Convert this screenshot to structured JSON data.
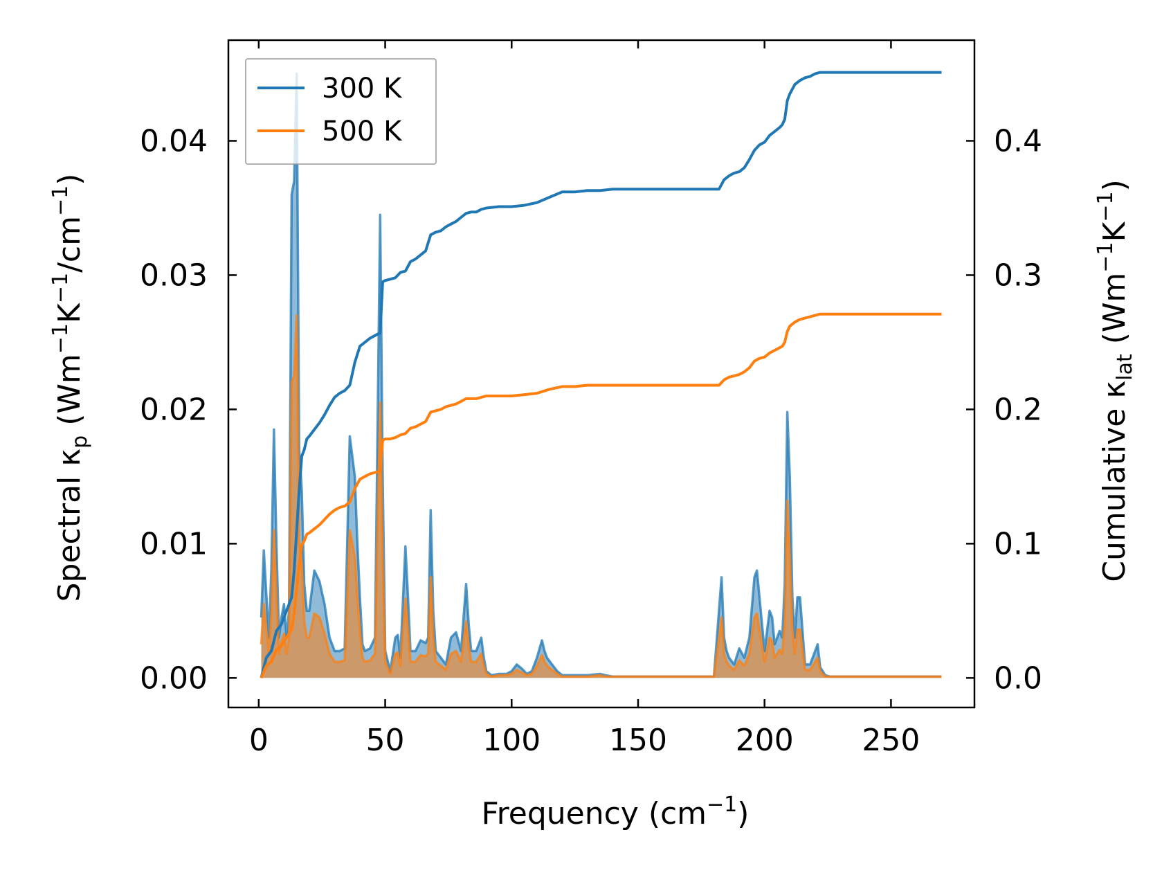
{
  "chart_data": {
    "type": "line",
    "xlabel": "Frequency (cm⁻¹)",
    "xlabel_parts": {
      "main": "Frequency (cm",
      "sup": "−1",
      "close": ")"
    },
    "ylabel_left_parts": {
      "a": "Spectral κ",
      "sub": "p",
      "b": " (Wm",
      "sup1": "−1",
      "c": "K",
      "sup2": "−1",
      "d": "/cm",
      "sup3": "−1",
      "e": ")"
    },
    "ylabel_right_parts": {
      "a": "Cumulative κ",
      "sub": "lat",
      "b": " (Wm",
      "sup1": "−1",
      "c": "K",
      "sup2": "−1",
      "d": ")"
    },
    "xlim": [
      -12,
      283
    ],
    "ylim_left": [
      -0.0022,
      0.0475
    ],
    "ylim_right": [
      -0.022,
      0.475
    ],
    "x_ticks": [
      0,
      50,
      100,
      150,
      200,
      250
    ],
    "y_left_ticks": [
      "0.00",
      "0.01",
      "0.02",
      "0.03",
      "0.04"
    ],
    "y_right_ticks": [
      "0.0",
      "0.1",
      "0.2",
      "0.3",
      "0.4"
    ],
    "legend": {
      "position": "top-left",
      "entries": [
        "300 K",
        "500 K"
      ]
    },
    "colors": {
      "300 K": "#1f77b4",
      "500 K": "#ff7f0e"
    },
    "series": [
      {
        "name": "300 K",
        "axis": "left",
        "kind": "spectral-filled",
        "x": [
          1,
          2,
          3,
          4,
          5,
          6,
          7,
          8,
          9,
          10,
          11,
          12,
          13,
          14,
          15,
          16,
          17,
          18,
          19,
          20,
          22,
          24,
          26,
          28,
          30,
          32,
          34,
          36,
          38,
          39,
          40,
          41,
          42,
          44,
          46,
          48,
          49,
          50,
          52,
          54,
          55,
          56,
          58,
          59,
          60,
          62,
          64,
          66,
          67,
          68,
          69,
          70,
          72,
          74,
          76,
          78,
          80,
          82,
          83,
          84,
          86,
          88,
          89,
          90,
          92,
          95,
          98,
          100,
          102,
          104,
          106,
          108,
          110,
          112,
          113,
          114,
          116,
          118,
          120,
          125,
          130,
          135,
          137,
          140,
          145,
          150,
          160,
          170,
          180,
          182,
          183,
          184,
          185,
          186,
          188,
          190,
          192,
          194,
          196,
          197,
          198,
          200,
          202,
          203,
          204,
          206,
          207,
          208,
          209,
          210,
          211,
          212,
          213,
          214,
          216,
          218,
          220,
          221,
          222,
          224,
          226,
          230,
          240,
          250,
          260,
          270
        ],
        "values": [
          0.0045,
          0.0095,
          0.0062,
          0.003,
          0.008,
          0.0185,
          0.01,
          0.003,
          0.0045,
          0.0055,
          0.003,
          0.005,
          0.036,
          0.037,
          0.045,
          0.017,
          0.014,
          0.007,
          0.005,
          0.005,
          0.008,
          0.0072,
          0.0055,
          0.003,
          0.002,
          0.002,
          0.0022,
          0.018,
          0.015,
          0.01,
          0.006,
          0.0025,
          0.002,
          0.0022,
          0.003,
          0.0345,
          0.015,
          0.002,
          0.0005,
          0.003,
          0.0032,
          0.0015,
          0.0098,
          0.006,
          0.002,
          0.002,
          0.0028,
          0.0026,
          0.003,
          0.0125,
          0.005,
          0.002,
          0.0015,
          0.001,
          0.003,
          0.0034,
          0.002,
          0.007,
          0.004,
          0.002,
          0.002,
          0.003,
          0.0015,
          0.0005,
          0.0002,
          0.0003,
          0.0003,
          0.0005,
          0.001,
          0.0007,
          0.0003,
          0.0005,
          0.0015,
          0.0028,
          0.002,
          0.0015,
          0.001,
          0.0005,
          0.0002,
          0.0002,
          0.0002,
          0.0003,
          0.0002,
          0.0001,
          0.0001,
          0.0001,
          0.0001,
          0.0001,
          0.0001,
          0.005,
          0.0075,
          0.003,
          0.002,
          0.0015,
          0.001,
          0.0022,
          0.0015,
          0.003,
          0.0075,
          0.008,
          0.006,
          0.002,
          0.005,
          0.0045,
          0.0025,
          0.0035,
          0.003,
          0.007,
          0.0198,
          0.015,
          0.006,
          0.003,
          0.006,
          0.006,
          0.001,
          0.001,
          0.002,
          0.0025,
          0.0008,
          0.0002,
          0.0001,
          0.0001,
          0.0001,
          0.0001,
          0.0001,
          0.0001
        ]
      },
      {
        "name": "500 K",
        "axis": "left",
        "kind": "spectral-filled",
        "x": [
          1,
          2,
          3,
          4,
          5,
          6,
          7,
          8,
          9,
          10,
          11,
          12,
          13,
          14,
          15,
          16,
          17,
          18,
          19,
          20,
          22,
          24,
          26,
          28,
          30,
          32,
          34,
          36,
          38,
          39,
          40,
          41,
          42,
          44,
          46,
          48,
          49,
          50,
          52,
          54,
          55,
          56,
          58,
          59,
          60,
          62,
          64,
          66,
          67,
          68,
          69,
          70,
          72,
          74,
          76,
          78,
          80,
          82,
          83,
          84,
          86,
          88,
          89,
          90,
          92,
          95,
          98,
          100,
          102,
          104,
          106,
          108,
          110,
          112,
          113,
          114,
          116,
          118,
          120,
          125,
          130,
          135,
          137,
          140,
          145,
          150,
          160,
          170,
          180,
          182,
          183,
          184,
          185,
          186,
          188,
          190,
          192,
          194,
          196,
          197,
          198,
          200,
          202,
          203,
          204,
          206,
          207,
          208,
          209,
          210,
          211,
          212,
          213,
          214,
          216,
          218,
          220,
          221,
          222,
          224,
          226,
          230,
          240,
          250,
          260,
          270
        ],
        "values": [
          0.0025,
          0.0055,
          0.0036,
          0.0018,
          0.0048,
          0.011,
          0.006,
          0.0018,
          0.0027,
          0.0033,
          0.0018,
          0.003,
          0.022,
          0.0225,
          0.027,
          0.0102,
          0.0085,
          0.0042,
          0.003,
          0.003,
          0.0048,
          0.0045,
          0.0033,
          0.0018,
          0.0012,
          0.0012,
          0.0013,
          0.011,
          0.009,
          0.006,
          0.0036,
          0.0015,
          0.0012,
          0.0013,
          0.0018,
          0.0205,
          0.009,
          0.0012,
          0.0003,
          0.0018,
          0.0019,
          0.0009,
          0.0059,
          0.0036,
          0.0012,
          0.0012,
          0.0017,
          0.0016,
          0.0018,
          0.0075,
          0.003,
          0.0012,
          0.0009,
          0.0006,
          0.0018,
          0.002,
          0.0012,
          0.0042,
          0.0024,
          0.0012,
          0.0012,
          0.0018,
          0.0009,
          0.0003,
          0.0001,
          0.0002,
          0.0002,
          0.0003,
          0.0006,
          0.0004,
          0.0002,
          0.0003,
          0.0009,
          0.0017,
          0.0012,
          0.0009,
          0.0006,
          0.0003,
          0.0001,
          0.0001,
          0.0001,
          0.0002,
          0.0001,
          0.0001,
          0.0001,
          0.0001,
          0.0001,
          0.0001,
          0.0001,
          0.003,
          0.0045,
          0.0018,
          0.0012,
          0.0009,
          0.0006,
          0.0013,
          0.0009,
          0.0018,
          0.0045,
          0.0048,
          0.0036,
          0.0012,
          0.003,
          0.0027,
          0.0015,
          0.0021,
          0.0018,
          0.0042,
          0.0132,
          0.009,
          0.0036,
          0.0018,
          0.0036,
          0.0036,
          0.0006,
          0.0006,
          0.0012,
          0.0015,
          0.0005,
          0.0001,
          0.0001,
          0.0001,
          0.0001,
          0.0001,
          0.0001,
          0.0001
        ]
      },
      {
        "name": "300 K",
        "axis": "right",
        "kind": "cumulative",
        "x": [
          1,
          3,
          5,
          7,
          9,
          11,
          13,
          14,
          15,
          16,
          17,
          18,
          19,
          20,
          22,
          24,
          26,
          28,
          30,
          32,
          34,
          36,
          38,
          40,
          42,
          44,
          46,
          48,
          49,
          50,
          52,
          54,
          56,
          58,
          60,
          62,
          64,
          66,
          68,
          70,
          72,
          74,
          76,
          78,
          80,
          82,
          84,
          86,
          88,
          90,
          95,
          100,
          105,
          110,
          115,
          120,
          125,
          130,
          135,
          140,
          150,
          160,
          170,
          182,
          184,
          186,
          188,
          190,
          192,
          194,
          196,
          198,
          200,
          202,
          204,
          206,
          207,
          208,
          209,
          210,
          212,
          214,
          216,
          218,
          220,
          222,
          230,
          240,
          250,
          260,
          270
        ],
        "values": [
          0.0,
          0.015,
          0.02,
          0.035,
          0.04,
          0.05,
          0.06,
          0.08,
          0.11,
          0.14,
          0.165,
          0.17,
          0.178,
          0.18,
          0.185,
          0.19,
          0.196,
          0.203,
          0.209,
          0.212,
          0.214,
          0.218,
          0.235,
          0.247,
          0.25,
          0.253,
          0.255,
          0.257,
          0.295,
          0.296,
          0.297,
          0.298,
          0.302,
          0.303,
          0.31,
          0.312,
          0.315,
          0.318,
          0.33,
          0.332,
          0.333,
          0.336,
          0.338,
          0.34,
          0.343,
          0.346,
          0.347,
          0.347,
          0.349,
          0.35,
          0.351,
          0.351,
          0.352,
          0.354,
          0.358,
          0.362,
          0.362,
          0.363,
          0.363,
          0.364,
          0.364,
          0.364,
          0.364,
          0.364,
          0.371,
          0.374,
          0.376,
          0.377,
          0.38,
          0.386,
          0.393,
          0.397,
          0.399,
          0.404,
          0.407,
          0.41,
          0.412,
          0.416,
          0.43,
          0.435,
          0.442,
          0.445,
          0.447,
          0.448,
          0.45,
          0.451,
          0.451,
          0.451,
          0.451,
          0.451,
          0.451
        ]
      },
      {
        "name": "500 K",
        "axis": "right",
        "kind": "cumulative",
        "x": [
          1,
          3,
          5,
          7,
          9,
          11,
          13,
          14,
          15,
          16,
          17,
          18,
          19,
          20,
          22,
          24,
          26,
          28,
          30,
          32,
          34,
          36,
          38,
          40,
          42,
          44,
          46,
          48,
          49,
          50,
          52,
          54,
          56,
          58,
          60,
          62,
          64,
          66,
          68,
          70,
          72,
          74,
          76,
          78,
          80,
          82,
          84,
          86,
          88,
          90,
          95,
          100,
          105,
          110,
          115,
          120,
          125,
          130,
          135,
          140,
          150,
          160,
          170,
          182,
          184,
          186,
          188,
          190,
          192,
          194,
          196,
          198,
          200,
          202,
          204,
          206,
          207,
          208,
          209,
          210,
          212,
          214,
          216,
          218,
          220,
          222,
          230,
          240,
          250,
          260,
          270
        ],
        "values": [
          0.0,
          0.009,
          0.012,
          0.021,
          0.024,
          0.03,
          0.036,
          0.048,
          0.066,
          0.084,
          0.099,
          0.102,
          0.107,
          0.108,
          0.111,
          0.114,
          0.118,
          0.122,
          0.125,
          0.127,
          0.128,
          0.131,
          0.141,
          0.148,
          0.15,
          0.152,
          0.153,
          0.154,
          0.177,
          0.178,
          0.178,
          0.179,
          0.181,
          0.182,
          0.186,
          0.187,
          0.189,
          0.191,
          0.198,
          0.199,
          0.2,
          0.202,
          0.203,
          0.204,
          0.206,
          0.208,
          0.208,
          0.208,
          0.209,
          0.21,
          0.21,
          0.21,
          0.211,
          0.212,
          0.215,
          0.217,
          0.217,
          0.218,
          0.218,
          0.218,
          0.218,
          0.218,
          0.218,
          0.218,
          0.222,
          0.224,
          0.225,
          0.226,
          0.228,
          0.231,
          0.236,
          0.238,
          0.239,
          0.242,
          0.244,
          0.246,
          0.247,
          0.25,
          0.258,
          0.262,
          0.265,
          0.267,
          0.268,
          0.269,
          0.27,
          0.271,
          0.271,
          0.271,
          0.271,
          0.271,
          0.271
        ]
      }
    ]
  }
}
